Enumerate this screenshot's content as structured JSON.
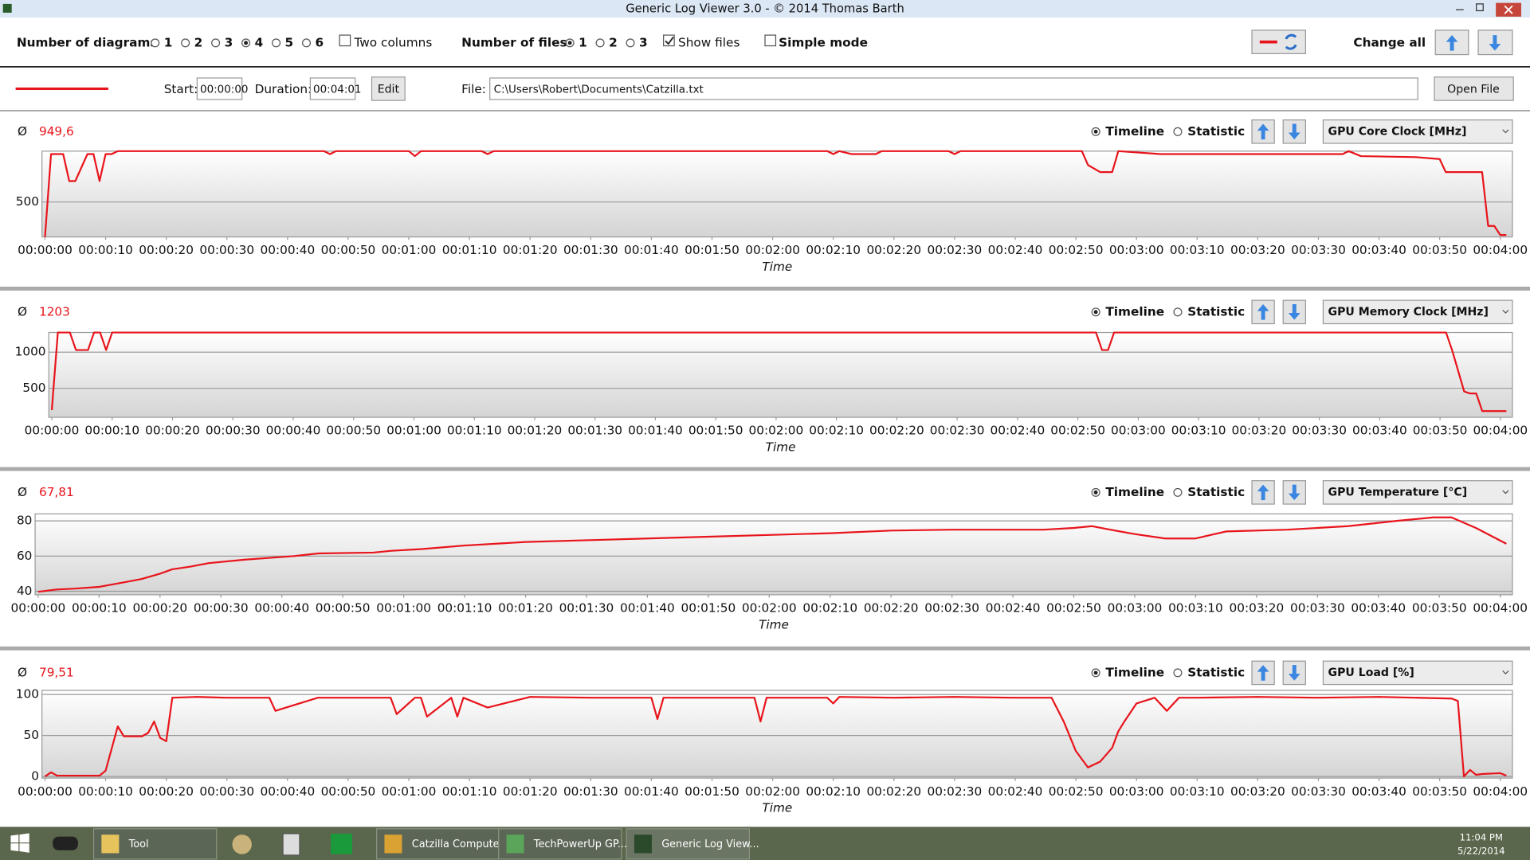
{
  "window": {
    "title": "Generic Log Viewer 3.0 - © 2014 Thomas Barth"
  },
  "toolbar": {
    "diagrams_label": "Number of diagrams",
    "diagram_options": [
      "1",
      "2",
      "3",
      "4",
      "5",
      "6"
    ],
    "diagram_selected": "4",
    "two_columns": {
      "label": "Two columns",
      "checked": false
    },
    "files_label": "Number of files",
    "file_options": [
      "1",
      "2",
      "3"
    ],
    "file_selected": "1",
    "show_files": {
      "label": "Show files",
      "checked": true
    },
    "simple_mode": {
      "label": "Simple mode",
      "checked": false
    },
    "change_all": "Change all"
  },
  "file_row": {
    "start_label": "Start:",
    "start": "00:00:00",
    "duration_label": "Duration:",
    "duration": "00:04:01",
    "edit": "Edit",
    "file_label": "File:",
    "file_path": "C:\\Users\\Robert\\Documents\\Catzilla.txt",
    "open_file": "Open File"
  },
  "chart_data": [
    {
      "type": "line",
      "title": "GPU Core Clock [MHz]",
      "average_symbol": "Ø",
      "average": "949,6",
      "modes": [
        "Timeline",
        "Statistic"
      ],
      "mode_selected": "Timeline",
      "x_label": "Time",
      "x": [
        0,
        1,
        3,
        4,
        5,
        7,
        8,
        9,
        10,
        11,
        12,
        46,
        47,
        48,
        60,
        61,
        62,
        72,
        73,
        74,
        129,
        130,
        131,
        133,
        134,
        137,
        138,
        140,
        149,
        150,
        151,
        171,
        172,
        174,
        176,
        177,
        184,
        214,
        215,
        217,
        226,
        230,
        231,
        237,
        238,
        239,
        240,
        241
      ],
      "series": [
        {
          "color": "#e8141b",
          "values": [
            143,
            990,
            990,
            714,
            714,
            990,
            990,
            714,
            990,
            990,
            1020,
            1020,
            990,
            1020,
            1020,
            969,
            1020,
            1020,
            990,
            1020,
            1020,
            990,
            1020,
            990,
            990,
            990,
            1020,
            1020,
            1020,
            990,
            1020,
            1020,
            878,
            806,
            806,
            1020,
            990,
            990,
            1020,
            969,
            959,
            939,
            806,
            806,
            255,
            255,
            163,
            163
          ]
        }
      ],
      "xlim": [
        -0.5,
        242
      ],
      "ylim": [
        143,
        1020
      ],
      "yticks": [
        500
      ],
      "grid": true,
      "xticks": [
        {
          "value": 0,
          "label": "00:00:00"
        },
        {
          "value": 10,
          "label": "00:00:10"
        },
        {
          "value": 20,
          "label": "00:00:20"
        },
        {
          "value": 30,
          "label": "00:00:30"
        },
        {
          "value": 40,
          "label": "00:00:40"
        },
        {
          "value": 50,
          "label": "00:00:50"
        },
        {
          "value": 60,
          "label": "00:01:00"
        },
        {
          "value": 70,
          "label": "00:01:10"
        },
        {
          "value": 80,
          "label": "00:01:20"
        },
        {
          "value": 90,
          "label": "00:01:30"
        },
        {
          "value": 100,
          "label": "00:01:40"
        },
        {
          "value": 110,
          "label": "00:01:50"
        },
        {
          "value": 120,
          "label": "00:02:00"
        },
        {
          "value": 130,
          "label": "00:02:10"
        },
        {
          "value": 140,
          "label": "00:02:20"
        },
        {
          "value": 150,
          "label": "00:02:30"
        },
        {
          "value": 160,
          "label": "00:02:40"
        },
        {
          "value": 170,
          "label": "00:02:50"
        },
        {
          "value": 180,
          "label": "00:03:00"
        },
        {
          "value": 190,
          "label": "00:03:10"
        },
        {
          "value": 200,
          "label": "00:03:20"
        },
        {
          "value": 210,
          "label": "00:03:30"
        },
        {
          "value": 220,
          "label": "00:03:40"
        },
        {
          "value": 230,
          "label": "00:03:50"
        },
        {
          "value": 240,
          "label": "00:04:00"
        }
      ]
    },
    {
      "type": "line",
      "title": "GPU Memory Clock [MHz]",
      "average_symbol": "Ø",
      "average": "1203",
      "modes": [
        "Timeline",
        "Statistic"
      ],
      "mode_selected": "Timeline",
      "x_label": "Time",
      "x": [
        0,
        1,
        3,
        4,
        6,
        7,
        8,
        9,
        10,
        173,
        174,
        175,
        176,
        231,
        232,
        234,
        235,
        236,
        237,
        241
      ],
      "series": [
        {
          "color": "#e8141b",
          "values": [
            200,
            1271,
            1271,
            1029,
            1029,
            1271,
            1271,
            1029,
            1271,
            1271,
            1029,
            1029,
            1271,
            1271,
            1029,
            457,
            429,
            429,
            186,
            186
          ]
        }
      ],
      "xlim": [
        -0.5,
        242
      ],
      "ylim": [
        100,
        1271
      ],
      "yticks": [
        500,
        1000
      ],
      "grid": true,
      "xticks": [
        {
          "value": 0,
          "label": "00:00:00"
        },
        {
          "value": 10,
          "label": "00:00:10"
        },
        {
          "value": 20,
          "label": "00:00:20"
        },
        {
          "value": 30,
          "label": "00:00:30"
        },
        {
          "value": 40,
          "label": "00:00:40"
        },
        {
          "value": 50,
          "label": "00:00:50"
        },
        {
          "value": 60,
          "label": "00:01:00"
        },
        {
          "value": 70,
          "label": "00:01:10"
        },
        {
          "value": 80,
          "label": "00:01:20"
        },
        {
          "value": 90,
          "label": "00:01:30"
        },
        {
          "value": 100,
          "label": "00:01:40"
        },
        {
          "value": 110,
          "label": "00:01:50"
        },
        {
          "value": 120,
          "label": "00:02:00"
        },
        {
          "value": 130,
          "label": "00:02:10"
        },
        {
          "value": 140,
          "label": "00:02:20"
        },
        {
          "value": 150,
          "label": "00:02:30"
        },
        {
          "value": 160,
          "label": "00:02:40"
        },
        {
          "value": 170,
          "label": "00:02:50"
        },
        {
          "value": 180,
          "label": "00:03:00"
        },
        {
          "value": 190,
          "label": "00:03:10"
        },
        {
          "value": 200,
          "label": "00:03:20"
        },
        {
          "value": 210,
          "label": "00:03:30"
        },
        {
          "value": 220,
          "label": "00:03:40"
        },
        {
          "value": 230,
          "label": "00:03:50"
        },
        {
          "value": 240,
          "label": "00:04:00"
        }
      ]
    },
    {
      "type": "line",
      "title": "GPU Temperature [°C]",
      "average_symbol": "Ø",
      "average": "67,81",
      "modes": [
        "Timeline",
        "Statistic"
      ],
      "mode_selected": "Timeline",
      "x_label": "Time",
      "x": [
        0,
        3,
        6,
        10,
        14,
        17,
        20,
        22,
        25,
        28,
        34,
        38,
        42,
        46,
        55,
        58,
        63,
        70,
        80,
        90,
        100,
        110,
        120,
        130,
        140,
        150,
        165,
        170,
        173,
        176,
        180,
        185,
        190,
        195,
        205,
        215,
        223,
        229,
        232,
        236,
        241
      ],
      "series": [
        {
          "color": "#e8141b",
          "values": [
            39.7,
            41,
            41.5,
            42.5,
            45,
            47,
            50,
            52.5,
            54,
            56,
            58,
            59,
            60,
            61.5,
            62,
            63,
            64,
            66,
            68,
            69,
            70,
            71,
            72,
            73,
            74.5,
            75,
            75,
            76,
            77,
            75,
            72.5,
            70,
            70,
            74,
            75,
            77,
            80,
            82,
            82,
            76,
            67
          ]
        }
      ],
      "xlim": [
        -0.5,
        242
      ],
      "ylim": [
        38,
        84
      ],
      "yticks": [
        40,
        60,
        80
      ],
      "grid": true,
      "xticks": [
        {
          "value": 0,
          "label": "00:00:00"
        },
        {
          "value": 10,
          "label": "00:00:10"
        },
        {
          "value": 20,
          "label": "00:00:20"
        },
        {
          "value": 30,
          "label": "00:00:30"
        },
        {
          "value": 40,
          "label": "00:00:40"
        },
        {
          "value": 50,
          "label": "00:00:50"
        },
        {
          "value": 60,
          "label": "00:01:00"
        },
        {
          "value": 70,
          "label": "00:01:10"
        },
        {
          "value": 80,
          "label": "00:01:20"
        },
        {
          "value": 90,
          "label": "00:01:30"
        },
        {
          "value": 100,
          "label": "00:01:40"
        },
        {
          "value": 110,
          "label": "00:01:50"
        },
        {
          "value": 120,
          "label": "00:02:00"
        },
        {
          "value": 130,
          "label": "00:02:10"
        },
        {
          "value": 140,
          "label": "00:02:20"
        },
        {
          "value": 150,
          "label": "00:02:30"
        },
        {
          "value": 160,
          "label": "00:02:40"
        },
        {
          "value": 170,
          "label": "00:02:50"
        },
        {
          "value": 180,
          "label": "00:03:00"
        },
        {
          "value": 190,
          "label": "00:03:10"
        },
        {
          "value": 200,
          "label": "00:03:20"
        },
        {
          "value": 210,
          "label": "00:03:30"
        },
        {
          "value": 220,
          "label": "00:03:40"
        },
        {
          "value": 230,
          "label": "00:03:50"
        },
        {
          "value": 240,
          "label": "00:04:00"
        }
      ]
    },
    {
      "type": "line",
      "title": "GPU Load [%]",
      "average_symbol": "Ø",
      "average": "79,51",
      "modes": [
        "Timeline",
        "Statistic"
      ],
      "mode_selected": "Timeline",
      "x_label": "Time",
      "x": [
        0,
        1,
        2,
        9,
        10,
        12,
        13,
        16,
        17,
        18,
        19,
        20,
        21,
        25,
        30,
        37,
        38,
        45,
        57,
        58,
        61,
        62,
        63,
        67,
        68,
        69,
        73,
        80,
        90,
        100,
        101,
        102,
        110,
        117,
        118,
        119,
        129,
        130,
        131,
        140,
        150,
        160,
        166,
        168,
        170,
        172,
        174,
        176,
        177,
        178,
        180,
        183,
        185,
        187,
        190,
        200,
        210,
        220,
        226,
        232,
        233,
        234,
        235,
        236,
        237,
        240,
        241
      ],
      "series": [
        {
          "color": "#e8141b",
          "values": [
            0,
            5,
            1,
            1,
            7,
            61,
            49,
            49,
            53,
            67,
            47,
            43,
            96,
            97,
            96,
            96,
            80,
            96,
            96,
            76,
            96,
            96,
            73,
            96,
            73,
            96,
            84,
            97,
            96,
            96,
            70,
            96,
            96,
            96,
            67,
            96,
            96,
            89,
            97,
            96,
            97,
            96,
            96,
            67,
            31,
            11,
            18,
            35,
            55,
            67,
            89,
            96,
            80,
            96,
            96,
            97,
            96,
            97,
            96,
            95,
            92,
            0,
            8,
            2,
            3,
            4,
            1
          ]
        }
      ],
      "xlim": [
        -0.5,
        242
      ],
      "ylim": [
        -2,
        105
      ],
      "yticks": [
        0,
        50,
        100
      ],
      "grid": true,
      "xticks": [
        {
          "value": 0,
          "label": "00:00:00"
        },
        {
          "value": 10,
          "label": "00:00:10"
        },
        {
          "value": 20,
          "label": "00:00:20"
        },
        {
          "value": 30,
          "label": "00:00:30"
        },
        {
          "value": 40,
          "label": "00:00:40"
        },
        {
          "value": 50,
          "label": "00:00:50"
        },
        {
          "value": 60,
          "label": "00:01:00"
        },
        {
          "value": 70,
          "label": "00:01:10"
        },
        {
          "value": 80,
          "label": "00:01:20"
        },
        {
          "value": 90,
          "label": "00:01:30"
        },
        {
          "value": 100,
          "label": "00:01:40"
        },
        {
          "value": 110,
          "label": "00:01:50"
        },
        {
          "value": 120,
          "label": "00:02:00"
        },
        {
          "value": 130,
          "label": "00:02:10"
        },
        {
          "value": 140,
          "label": "00:02:20"
        },
        {
          "value": 150,
          "label": "00:02:30"
        },
        {
          "value": 160,
          "label": "00:02:40"
        },
        {
          "value": 170,
          "label": "00:02:50"
        },
        {
          "value": 180,
          "label": "00:03:00"
        },
        {
          "value": 190,
          "label": "00:03:10"
        },
        {
          "value": 200,
          "label": "00:03:20"
        },
        {
          "value": 210,
          "label": "00:03:30"
        },
        {
          "value": 220,
          "label": "00:03:40"
        },
        {
          "value": 230,
          "label": "00:03:50"
        },
        {
          "value": 240,
          "label": "00:04:00"
        }
      ]
    }
  ],
  "taskbar": {
    "items": [
      "Tool",
      "Catzilla Computer...",
      "TechPowerUp GP...",
      "Generic Log View..."
    ],
    "time": "11:04 PM",
    "date": "5/22/2014"
  }
}
